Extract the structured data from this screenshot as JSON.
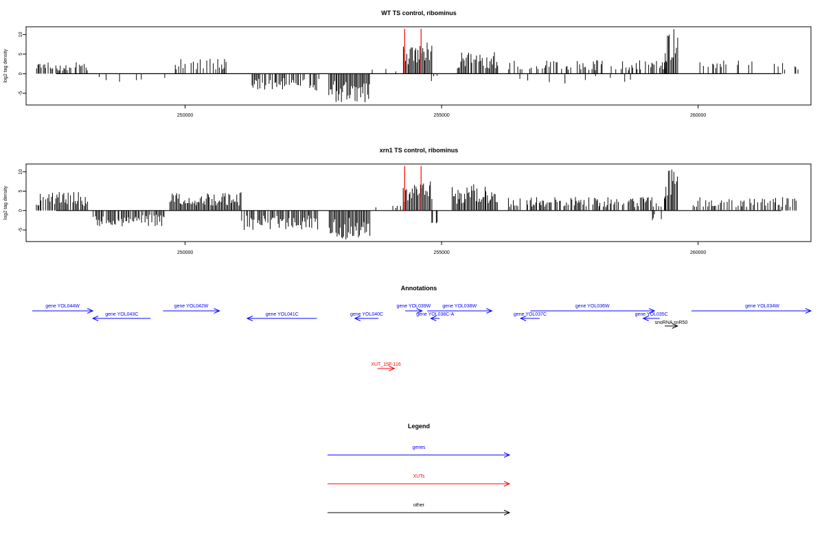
{
  "chart_data": [
    {
      "type": "bar",
      "title": "WT TS control, ribominus",
      "xlabel": "",
      "ylabel": "log2 tag density",
      "xlim": [
        246900,
        262200
      ],
      "ylim": [
        -8,
        12
      ],
      "yticks": [
        -5,
        0,
        5,
        10
      ],
      "ytick_labels": [
        "-5",
        "0",
        "5",
        "10"
      ],
      "xticks": [
        250000,
        255000,
        260000
      ],
      "xtick_labels": [
        "250000",
        "255000",
        "260000"
      ],
      "highlight_color": "#ff0000",
      "highlights": [
        {
          "x": 254280,
          "value": 11.5
        },
        {
          "x": 254600,
          "value": 11.5
        }
      ],
      "segments": [
        {
          "start": 247100,
          "end": 248100,
          "sign": 1,
          "max": 3.0,
          "density": 0.55,
          "seed": 11
        },
        {
          "start": 248300,
          "end": 249600,
          "sign": -1,
          "max": 2.5,
          "density": 0.15,
          "seed": 12
        },
        {
          "start": 249800,
          "end": 250800,
          "sign": 1,
          "max": 3.8,
          "density": 0.55,
          "seed": 13
        },
        {
          "start": 251300,
          "end": 252600,
          "sign": -1,
          "max": 4.5,
          "density": 0.6,
          "seed": 14
        },
        {
          "start": 252800,
          "end": 253600,
          "sign": -1,
          "max": 7.5,
          "density": 1.0,
          "seed": 15
        },
        {
          "start": 253600,
          "end": 254250,
          "sign": 1,
          "max": 1.5,
          "density": 0.1,
          "seed": 16
        },
        {
          "start": 254250,
          "end": 254800,
          "sign": 1,
          "max": 8.0,
          "density": 1.0,
          "seed": 17
        },
        {
          "start": 254800,
          "end": 255000,
          "sign": -1,
          "max": 2.0,
          "density": 0.25,
          "seed": 18
        },
        {
          "start": 255300,
          "end": 256100,
          "sign": 1,
          "max": 5.5,
          "density": 0.85,
          "seed": 19
        },
        {
          "start": 256300,
          "end": 259400,
          "sign": 1,
          "max": 3.5,
          "density": 0.5,
          "seed": 20
        },
        {
          "start": 256300,
          "end": 259300,
          "sign": -1,
          "max": 2.5,
          "density": 0.05,
          "seed": 21
        },
        {
          "start": 259350,
          "end": 259600,
          "sign": 1,
          "max": 11.5,
          "density": 1.0,
          "seed": 22
        },
        {
          "start": 259900,
          "end": 262000,
          "sign": 1,
          "max": 3.5,
          "density": 0.15,
          "seed": 23
        }
      ]
    },
    {
      "type": "bar",
      "title": "xrn1 TS control, ribominus",
      "xlabel": "",
      "ylabel": "log2 tag density",
      "xlim": [
        246900,
        262200
      ],
      "ylim": [
        -8,
        12
      ],
      "yticks": [
        -5,
        0,
        5,
        10
      ],
      "ytick_labels": [
        "-5",
        "0",
        "5",
        "10"
      ],
      "xticks": [
        250000,
        255000,
        260000
      ],
      "xtick_labels": [
        "250000",
        "255000",
        "260000"
      ],
      "highlight_color": "#ff0000",
      "highlights": [
        {
          "x": 254280,
          "value": 11.5
        },
        {
          "x": 254600,
          "value": 11.5
        }
      ],
      "segments": [
        {
          "start": 247100,
          "end": 248100,
          "sign": 1,
          "max": 4.8,
          "density": 0.9,
          "seed": 31
        },
        {
          "start": 248200,
          "end": 249600,
          "sign": -1,
          "max": 4.2,
          "density": 0.85,
          "seed": 32
        },
        {
          "start": 249700,
          "end": 251100,
          "sign": 1,
          "max": 4.8,
          "density": 0.95,
          "seed": 33
        },
        {
          "start": 251100,
          "end": 252600,
          "sign": -1,
          "max": 5.0,
          "density": 0.8,
          "seed": 34
        },
        {
          "start": 252800,
          "end": 253600,
          "sign": -1,
          "max": 7.5,
          "density": 1.0,
          "seed": 35
        },
        {
          "start": 253600,
          "end": 254250,
          "sign": 1,
          "max": 1.5,
          "density": 0.15,
          "seed": 36
        },
        {
          "start": 254250,
          "end": 254800,
          "sign": 1,
          "max": 8.0,
          "density": 1.0,
          "seed": 37
        },
        {
          "start": 254800,
          "end": 255000,
          "sign": -1,
          "max": 4.0,
          "density": 0.4,
          "seed": 38
        },
        {
          "start": 255200,
          "end": 256100,
          "sign": 1,
          "max": 7.0,
          "density": 1.0,
          "seed": 39
        },
        {
          "start": 256300,
          "end": 259400,
          "sign": 1,
          "max": 3.5,
          "density": 0.75,
          "seed": 40
        },
        {
          "start": 259100,
          "end": 259350,
          "sign": -1,
          "max": 2.5,
          "density": 0.3,
          "seed": 41
        },
        {
          "start": 259350,
          "end": 259600,
          "sign": 1,
          "max": 11.5,
          "density": 1.0,
          "seed": 42
        },
        {
          "start": 259900,
          "end": 262000,
          "sign": 1,
          "max": 3.5,
          "density": 0.55,
          "seed": 43
        }
      ]
    }
  ],
  "annotations": {
    "title": "Annotations",
    "features": [
      {
        "label": "gene YOL044W",
        "start": 247020,
        "end": 248200,
        "strand": "+",
        "kind": "gene",
        "row": 0
      },
      {
        "label": "gene YOL043C",
        "start": 248200,
        "end": 249330,
        "strand": "-",
        "kind": "gene",
        "row": 1
      },
      {
        "label": "gene YOL042W",
        "start": 249570,
        "end": 250670,
        "strand": "+",
        "kind": "gene",
        "row": 0
      },
      {
        "label": "gene YOL041C",
        "start": 251210,
        "end": 252570,
        "strand": "-",
        "kind": "gene",
        "row": 1
      },
      {
        "label": "gene YOL040C",
        "start": 253310,
        "end": 253770,
        "strand": "-",
        "kind": "gene",
        "row": 1
      },
      {
        "label": "gene YOL039W",
        "start": 254290,
        "end": 254620,
        "strand": "+",
        "kind": "gene",
        "row": 0
      },
      {
        "label": "gene YOL038C-A",
        "start": 254790,
        "end": 254960,
        "strand": "-",
        "kind": "gene",
        "row": 1
      },
      {
        "label": "gene YOL038W",
        "start": 254720,
        "end": 255980,
        "strand": "+",
        "kind": "gene",
        "row": 0
      },
      {
        "label": "gene YOL037C",
        "start": 256540,
        "end": 256910,
        "strand": "-",
        "kind": "gene",
        "row": 1
      },
      {
        "label": "gene YOL036W",
        "start": 256730,
        "end": 259150,
        "strand": "+",
        "kind": "gene",
        "row": 0
      },
      {
        "label": "gene YOL035C",
        "start": 258930,
        "end": 259250,
        "strand": "-",
        "kind": "gene",
        "row": 1
      },
      {
        "label": "snoRNA snR50",
        "start": 259350,
        "end": 259600,
        "strand": "+",
        "kind": "other",
        "row": 2
      },
      {
        "label": "gene YOL034W",
        "start": 259870,
        "end": 262200,
        "strand": "+",
        "kind": "gene",
        "row": 0
      },
      {
        "label": "XUT_15F-116",
        "start": 253750,
        "end": 254080,
        "strand": "+",
        "kind": "xut",
        "row": 3
      }
    ]
  },
  "legend": {
    "title": "Legend",
    "items": [
      {
        "label": "genes",
        "color": "#0000ff",
        "kind": "gene"
      },
      {
        "label": "XUTs",
        "color": "#ff0000",
        "kind": "xut"
      },
      {
        "label": "other",
        "color": "#000000",
        "kind": "other"
      }
    ]
  },
  "colors": {
    "gene": "#0000ff",
    "xut": "#ff0000",
    "other": "#000000",
    "bars": "#000000"
  }
}
